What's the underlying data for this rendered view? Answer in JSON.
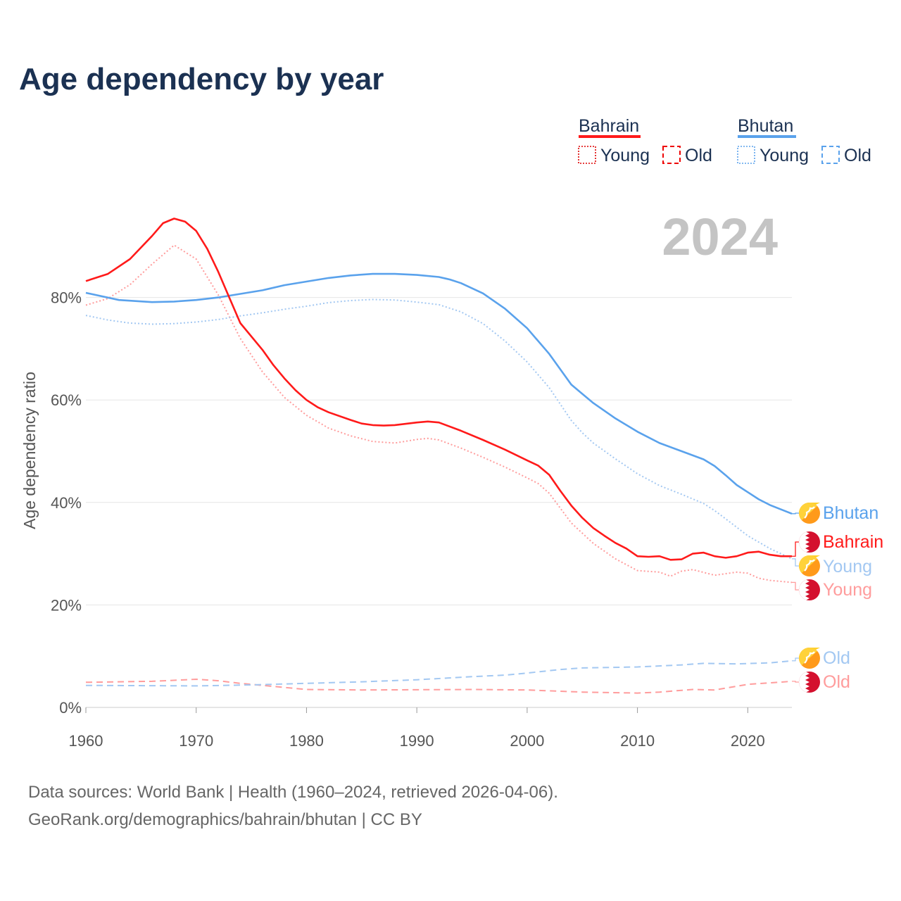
{
  "title": "Age dependency by year",
  "footer": {
    "line1": "Data sources: World Bank | Health (1960–2024, retrieved 2026-04-06).",
    "line2": "GeoRank.org/demographics/bahrain/bhutan | CC BY"
  },
  "year_label": "2024",
  "legend": {
    "countries": [
      {
        "name": "Bahrain",
        "color": "#ff1a1a",
        "young": "Young",
        "old": "Old"
      },
      {
        "name": "Bhutan",
        "color": "#5aa2ec",
        "young": "Young",
        "old": "Old"
      }
    ]
  },
  "end_labels": {
    "bhutan": "Bhutan",
    "bahrain": "Bahrain",
    "bhutan_young": "Young",
    "bahrain_young": "Young",
    "bhutan_old": "Old",
    "bahrain_old": "Old"
  },
  "chart_data": {
    "type": "line",
    "title": "Age dependency by year",
    "xlabel": "",
    "ylabel": "Age dependency ratio",
    "xlim": [
      1960,
      2024
    ],
    "ylim": [
      0,
      100
    ],
    "xticks": [
      "1960",
      "1970",
      "1980",
      "1990",
      "2000",
      "2010",
      "2020"
    ],
    "yticks": [
      "0%",
      "20%",
      "40%",
      "60%",
      "80%"
    ],
    "grid": true,
    "legend_position": "top-right",
    "series": [
      {
        "name": "Bahrain",
        "style": "solid",
        "color": "#ff1a1a",
        "x": [
          1960,
          1962,
          1964,
          1966,
          1967,
          1968,
          1969,
          1970,
          1971,
          1972,
          1973,
          1974,
          1976,
          1977,
          1978,
          1979,
          1980,
          1981,
          1982,
          1984,
          1985,
          1986,
          1987,
          1988,
          1990,
          1991,
          1992,
          1994,
          1996,
          1998,
          2000,
          2001,
          2002,
          2003,
          2004,
          2005,
          2006,
          2007,
          2008,
          2009,
          2010,
          2011,
          2012,
          2013,
          2014,
          2015,
          2016,
          2017,
          2018,
          2019,
          2020,
          2021,
          2022,
          2023,
          2024
        ],
        "y": [
          83.2,
          84.6,
          87.5,
          92,
          94.5,
          95.4,
          94.8,
          93,
          89.5,
          85,
          80,
          75,
          69.8,
          66.8,
          64.2,
          61.9,
          60,
          58.6,
          57.6,
          56.1,
          55.4,
          55.1,
          55,
          55.1,
          55.6,
          55.8,
          55.6,
          54,
          52.2,
          50.3,
          48.2,
          47.2,
          45.4,
          42.3,
          39.4,
          37,
          35,
          33.5,
          32.1,
          31,
          29.5,
          29.4,
          29.5,
          28.8,
          28.9,
          30,
          30.2,
          29.5,
          29.2,
          29.5,
          30.2,
          30.4,
          29.8,
          29.5,
          29.5
        ]
      },
      {
        "name": "Bahrain Young",
        "style": "dotted",
        "color": "#ff9c9c",
        "x": [
          1960,
          1962,
          1964,
          1966,
          1968,
          1970,
          1972,
          1974,
          1976,
          1978,
          1980,
          1982,
          1984,
          1986,
          1988,
          1990,
          1991,
          1992,
          1994,
          1996,
          1998,
          2000,
          2001,
          2002,
          2004,
          2006,
          2008,
          2010,
          2012,
          2013,
          2014,
          2015,
          2017,
          2019,
          2020,
          2021,
          2022,
          2024
        ],
        "y": [
          78.5,
          79.8,
          82.5,
          86.5,
          90.2,
          87.5,
          80.5,
          72,
          65.5,
          60.5,
          57,
          54.5,
          53,
          51.9,
          51.6,
          52.3,
          52.5,
          52.2,
          50.6,
          48.8,
          46.9,
          44.8,
          43.7,
          41.8,
          36,
          32,
          29,
          26.7,
          26.4,
          25.6,
          26.6,
          26.9,
          25.8,
          26.4,
          26.2,
          25.2,
          24.8,
          24.4
        ]
      },
      {
        "name": "Bahrain Old",
        "style": "dashed",
        "color": "#ff9c9c",
        "x": [
          1960,
          1966,
          1970,
          1972,
          1974,
          1976,
          1978,
          1980,
          1985,
          1995,
          2000,
          2005,
          2010,
          2012,
          2015,
          2017,
          2020,
          2022,
          2024
        ],
        "y": [
          4.9,
          5.1,
          5.5,
          5.2,
          4.7,
          4.3,
          3.9,
          3.5,
          3.4,
          3.5,
          3.4,
          3.0,
          2.8,
          3.0,
          3.5,
          3.4,
          4.5,
          4.8,
          5.1
        ]
      },
      {
        "name": "Bhutan",
        "style": "solid",
        "color": "#5aa2ec",
        "x": [
          1960,
          1963,
          1966,
          1968,
          1970,
          1972,
          1974,
          1976,
          1978,
          1980,
          1982,
          1984,
          1986,
          1988,
          1990,
          1992,
          1993,
          1994,
          1996,
          1998,
          2000,
          2002,
          2004,
          2005,
          2006,
          2008,
          2010,
          2012,
          2014,
          2016,
          2017,
          2018,
          2019,
          2020,
          2021,
          2022,
          2024
        ],
        "y": [
          80.9,
          79.5,
          79.1,
          79.2,
          79.5,
          80,
          80.7,
          81.4,
          82.4,
          83.1,
          83.8,
          84.3,
          84.6,
          84.6,
          84.4,
          84,
          83.5,
          82.8,
          80.8,
          77.8,
          74,
          69,
          63,
          61.2,
          59.4,
          56.4,
          53.8,
          51.6,
          50,
          48.4,
          47.1,
          45.3,
          43.4,
          42,
          40.6,
          39.5,
          37.8
        ]
      },
      {
        "name": "Bhutan Young",
        "style": "dotted",
        "color": "#a3c8f2",
        "x": [
          1960,
          1962,
          1964,
          1966,
          1968,
          1970,
          1972,
          1974,
          1976,
          1978,
          1980,
          1982,
          1984,
          1986,
          1988,
          1990,
          1992,
          1994,
          1996,
          1998,
          2000,
          2002,
          2004,
          2005,
          2006,
          2008,
          2010,
          2012,
          2014,
          2016,
          2017,
          2018,
          2020,
          2022,
          2024
        ],
        "y": [
          76.5,
          75.6,
          75,
          74.8,
          74.9,
          75.2,
          75.7,
          76.4,
          77,
          77.7,
          78.3,
          79,
          79.4,
          79.6,
          79.5,
          79.1,
          78.6,
          77.2,
          74.9,
          71.5,
          67.4,
          62.4,
          56,
          53.6,
          51.6,
          48.5,
          45.6,
          43.3,
          41.6,
          39.8,
          38.4,
          36.8,
          33.5,
          31,
          29
        ]
      },
      {
        "name": "Bhutan Old",
        "style": "dashed",
        "color": "#a3c8f2",
        "x": [
          1960,
          1970,
          1975,
          1980,
          1985,
          1990,
          1995,
          1998,
          2000,
          2003,
          2005,
          2010,
          2014,
          2016,
          2019,
          2022,
          2024
        ],
        "y": [
          4.3,
          4.2,
          4.4,
          4.7,
          5.0,
          5.4,
          6.0,
          6.3,
          6.7,
          7.4,
          7.7,
          7.9,
          8.3,
          8.6,
          8.5,
          8.7,
          9.1
        ]
      }
    ]
  }
}
